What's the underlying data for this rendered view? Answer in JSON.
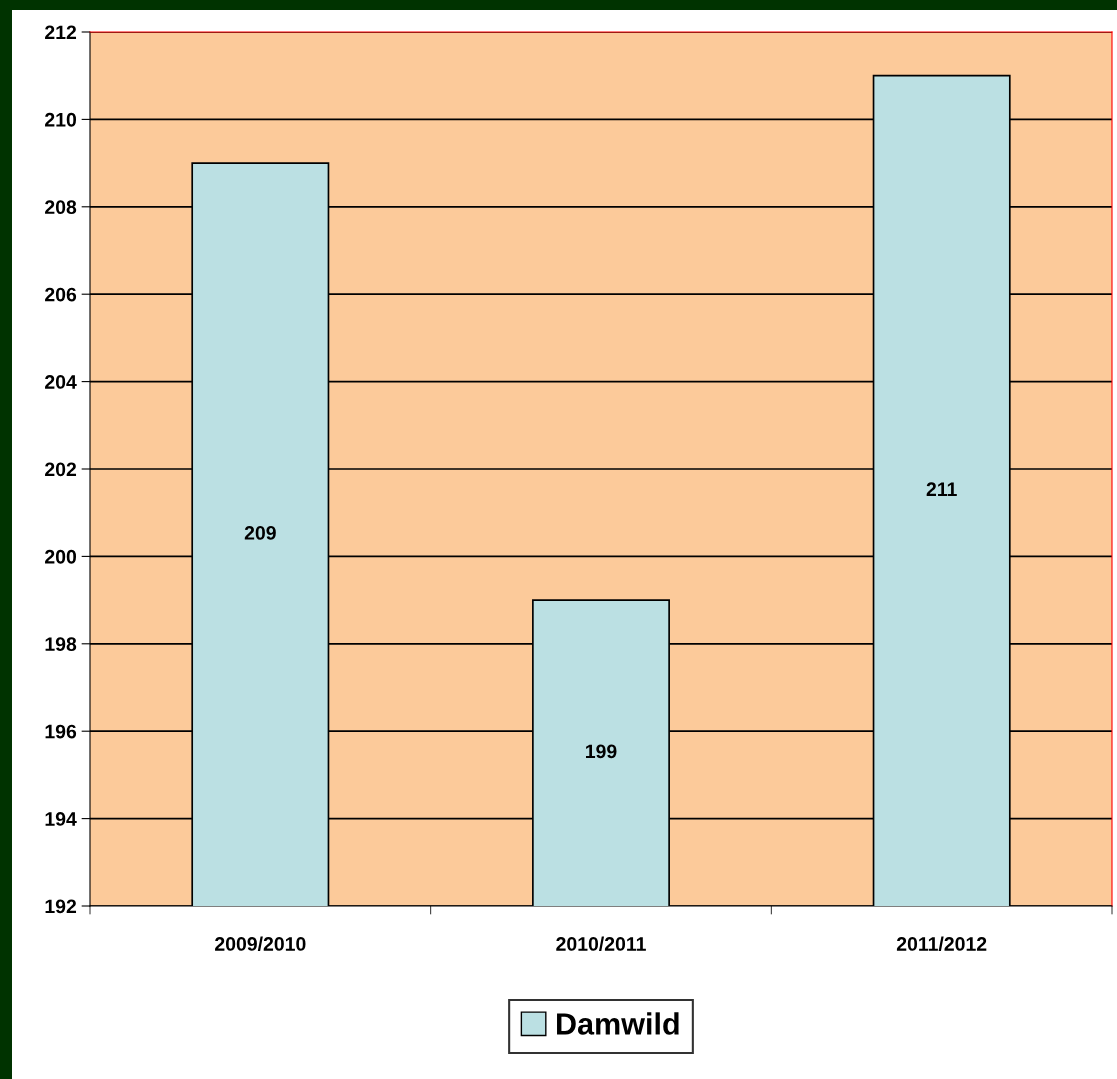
{
  "chart_data": {
    "type": "bar",
    "categories": [
      "2009/2010",
      "2010/2011",
      "2011/2012"
    ],
    "series": [
      {
        "name": "Damwild",
        "color": "#bbe0e3",
        "values": [
          209,
          199,
          211
        ]
      }
    ],
    "ylim": [
      192,
      212
    ],
    "yticks": [
      192,
      194,
      196,
      198,
      200,
      202,
      204,
      206,
      208,
      210,
      212
    ],
    "grid": "y",
    "legend": "bottom",
    "data_labels": true
  }
}
